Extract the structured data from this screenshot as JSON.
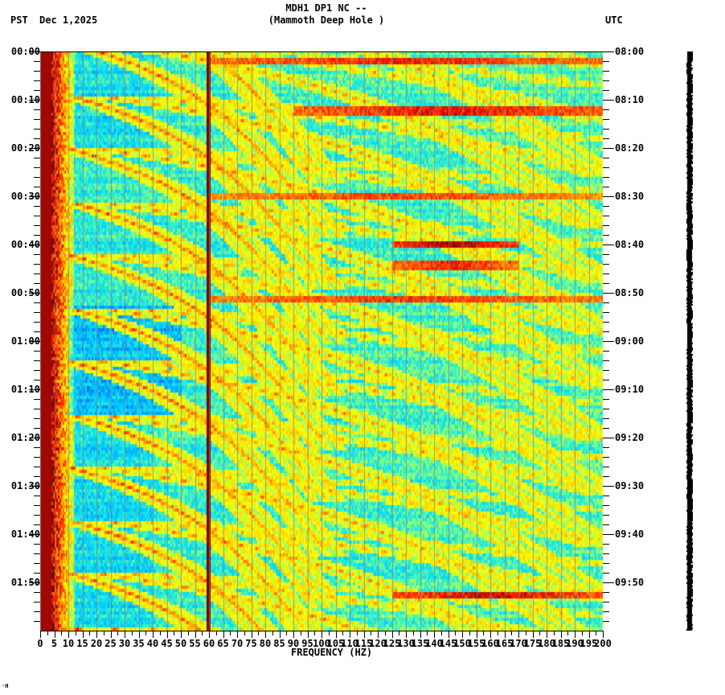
{
  "header": {
    "title_line1": "MDH1 DP1 NC --",
    "title_line2": "(Mammoth Deep Hole )",
    "timezone_left": "PST",
    "date": "Dec 1,2025",
    "timezone_right": "UTC"
  },
  "footer": {
    "corner_mark": "·Н"
  },
  "chart_data": {
    "type": "heatmap",
    "title": "MDH1 DP1 NC -- (Mammoth Deep Hole )",
    "subtitle": "Dec 1,2025",
    "xlabel": "FREQUENCY (HZ)",
    "ylabel_left": "PST",
    "ylabel_right": "UTC",
    "xlim": [
      0,
      200
    ],
    "ylim_minutes": [
      0,
      120
    ],
    "x_ticks": [
      0,
      5,
      10,
      15,
      20,
      25,
      30,
      35,
      40,
      45,
      50,
      55,
      60,
      65,
      70,
      75,
      80,
      85,
      90,
      95,
      100,
      105,
      110,
      115,
      120,
      125,
      130,
      135,
      140,
      145,
      150,
      155,
      160,
      165,
      170,
      175,
      180,
      185,
      190,
      195,
      200
    ],
    "x_tick_labels": [
      "0",
      "5",
      "10",
      "15",
      "20",
      "25",
      "30",
      "35",
      "40",
      "45",
      "50",
      "55",
      "60",
      "65",
      "70",
      "75",
      "80",
      "85",
      "90",
      "95",
      "100",
      "105",
      "110",
      "115",
      "120",
      "125",
      "130",
      "135",
      "140",
      "145",
      "150",
      "155",
      "160",
      "165",
      "170",
      "175",
      "180",
      "185",
      "190",
      "195",
      "200"
    ],
    "y_ticks_left": [
      "00:00",
      "00:10",
      "00:20",
      "00:30",
      "00:40",
      "00:50",
      "01:00",
      "01:10",
      "01:20",
      "01:30",
      "01:40",
      "01:50"
    ],
    "y_ticks_right": [
      "08:00",
      "08:10",
      "08:20",
      "08:30",
      "08:40",
      "08:50",
      "09:00",
      "09:10",
      "09:20",
      "09:30",
      "09:40",
      "09:50"
    ],
    "y_minor_tick_minutes": 2,
    "grid": "vertical lines every 5 Hz",
    "colormap": [
      "#0000ff",
      "#0080ff",
      "#00c8ff",
      "#20e8e0",
      "#80ff80",
      "#ffff00",
      "#ffa000",
      "#ff2000",
      "#800000"
    ],
    "features": {
      "line_60hz": {
        "freq": 60,
        "color": "#800000",
        "width_hz": 1.2
      },
      "low_freq_saturation": {
        "max_freq": 12,
        "description": "saturated red/dark-red below ~10 Hz throughout"
      },
      "quiet_zone": {
        "freq_range": [
          15,
          45
        ],
        "minutes": [
          52,
          75
        ],
        "description": "blue low-energy area"
      },
      "sweeping_arcs": {
        "description": "curved streaks rising in frequency over ~10-12 min repeating",
        "period_minutes": 11,
        "harmonics": [
          1,
          2,
          3,
          4
        ]
      },
      "horizontal_bands": [
        {
          "minute": 1.5,
          "freq_range": [
            60,
            200
          ],
          "intensity": 0.8
        },
        {
          "minute": 12,
          "freq_range": [
            90,
            200
          ],
          "intensity": 0.85
        },
        {
          "minute": 29.5,
          "freq_range": [
            60,
            200
          ],
          "intensity": 0.7
        },
        {
          "minute": 39.5,
          "freq_range": [
            125,
            170
          ],
          "intensity": 1.0
        },
        {
          "minute": 44,
          "freq_range": [
            125,
            170
          ],
          "intensity": 0.8
        },
        {
          "minute": 51,
          "freq_range": [
            60,
            200
          ],
          "intensity": 0.75
        },
        {
          "minute": 112.5,
          "freq_range": [
            125,
            200
          ],
          "intensity": 0.9
        }
      ]
    },
    "amplitude_trace": {
      "description": "narrow black amplitude strip right of plot"
    }
  }
}
